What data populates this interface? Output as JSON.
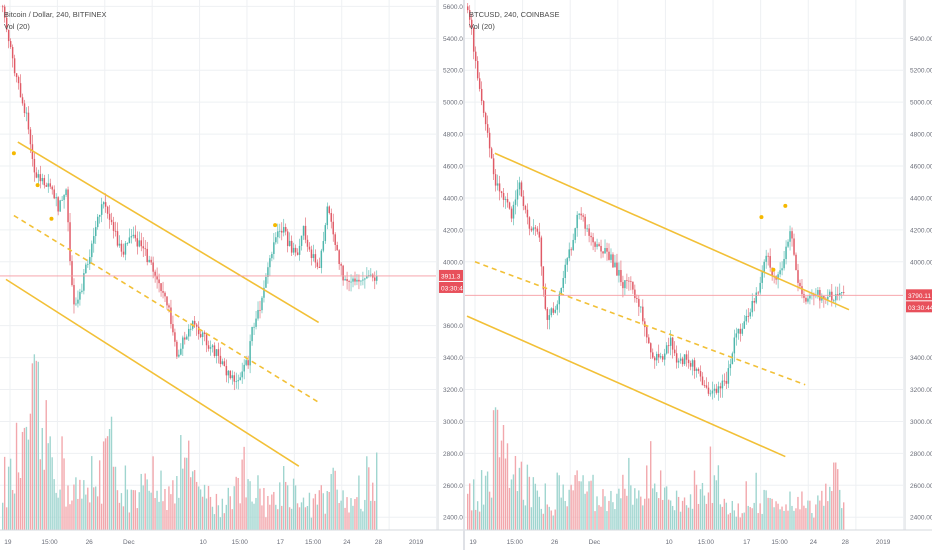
{
  "chart_data": [
    {
      "type": "candlestick",
      "title": "Bitcoin / Dollar, 240, BITFINEX",
      "subtitle": "Vol (20)",
      "price_ticks": [
        "5600.0",
        "5400.0",
        "5200.0",
        "5000.0",
        "4800.0",
        "4600.0",
        "4400.0",
        "4200.0",
        "4000.0",
        "3600.0",
        "3400.0",
        "3200.0",
        "3000.0",
        "2800.0",
        "2600.0",
        "2400.0"
      ],
      "time_ticks": [
        "19",
        "15:00",
        "26",
        "Dec",
        "10",
        "15:00",
        "17",
        "15:00",
        "24",
        "28",
        "2019"
      ],
      "y_range": [
        2320,
        5640
      ],
      "x_count": 190,
      "last_price": "3911.3",
      "countdown": "03:30:44",
      "close_path": [
        [
          0,
          5600
        ],
        [
          6,
          5200
        ],
        [
          12,
          4900
        ],
        [
          16,
          4550
        ],
        [
          20,
          4500
        ],
        [
          24,
          4500
        ],
        [
          28,
          4350
        ],
        [
          32,
          4450
        ],
        [
          34,
          3980
        ],
        [
          36,
          3700
        ],
        [
          40,
          3850
        ],
        [
          44,
          4050
        ],
        [
          48,
          4300
        ],
        [
          52,
          4360
        ],
        [
          56,
          4200
        ],
        [
          60,
          4050
        ],
        [
          66,
          4160
        ],
        [
          72,
          4050
        ],
        [
          78,
          3900
        ],
        [
          84,
          3680
        ],
        [
          88,
          3400
        ],
        [
          92,
          3530
        ],
        [
          96,
          3640
        ],
        [
          100,
          3550
        ],
        [
          104,
          3480
        ],
        [
          108,
          3430
        ],
        [
          112,
          3330
        ],
        [
          116,
          3260
        ],
        [
          120,
          3300
        ],
        [
          124,
          3370
        ],
        [
          126,
          3600
        ],
        [
          130,
          3700
        ],
        [
          134,
          3960
        ],
        [
          138,
          4180
        ],
        [
          142,
          4230
        ],
        [
          144,
          4120
        ],
        [
          148,
          4030
        ],
        [
          152,
          4200
        ],
        [
          156,
          4050
        ],
        [
          160,
          3950
        ],
        [
          164,
          4350
        ],
        [
          168,
          4100
        ],
        [
          172,
          3900
        ],
        [
          176,
          3880
        ],
        [
          180,
          3900
        ]
      ],
      "volume_pattern": [
        0.35,
        0.5,
        0.82,
        0.6,
        0.45,
        0.3,
        0.25,
        0.4,
        0.55,
        0.35,
        0.2,
        0.28,
        0.38,
        0.25,
        0.48,
        0.3,
        0.22,
        0.18,
        0.3,
        0.42,
        0.26,
        0.2,
        0.33,
        0.28,
        0.18,
        0.22,
        0.3,
        0.2,
        0.26,
        0.36
      ],
      "channel_upper": [
        [
          8,
          4750
        ],
        [
          160,
          3620
        ]
      ],
      "channel_mid": [
        [
          6,
          4290
        ],
        [
          160,
          3120
        ]
      ],
      "channel_lower": [
        [
          2,
          3890
        ],
        [
          150,
          2720
        ]
      ],
      "marker_points": [
        [
          6,
          4680
        ],
        [
          18,
          4480
        ],
        [
          25,
          4270
        ],
        [
          138,
          4230
        ]
      ],
      "colors": {
        "up": "#4db6ac",
        "down": "#e05a66",
        "vol_up": "#9fd5cf",
        "vol_down": "#f2a7ac",
        "channel": "#f2c037",
        "last_price": "#e8505b",
        "hline": "#f59aa1",
        "grid": "#eef0f3",
        "axis_text": "#6a6d78"
      }
    },
    {
      "type": "candlestick",
      "title": "BTCUSD, 240, COINBASE",
      "subtitle": "Vol (20)",
      "price_ticks": [
        "5400.00",
        "5200.00",
        "5000.00",
        "4800.00",
        "4600.00",
        "4400.00",
        "4200.00",
        "4000.00",
        "3400.00",
        "3200.00",
        "3000.00",
        "2800.00",
        "2600.00",
        "2400.00"
      ],
      "time_ticks": [
        "19",
        "15:00",
        "26",
        "Dec",
        "10",
        "15:00",
        "17",
        "15:00",
        "24",
        "28",
        "2019"
      ],
      "y_range": [
        2320,
        5640
      ],
      "x_count": 190,
      "last_price": "3790.11",
      "countdown": "03:30:44",
      "close_path": [
        [
          0,
          5600
        ],
        [
          6,
          5100
        ],
        [
          10,
          4800
        ],
        [
          14,
          4500
        ],
        [
          18,
          4380
        ],
        [
          22,
          4300
        ],
        [
          26,
          4500
        ],
        [
          28,
          4350
        ],
        [
          32,
          4200
        ],
        [
          36,
          4150
        ],
        [
          38,
          3800
        ],
        [
          40,
          3650
        ],
        [
          44,
          3700
        ],
        [
          48,
          3900
        ],
        [
          52,
          4100
        ],
        [
          56,
          4330
        ],
        [
          58,
          4250
        ],
        [
          62,
          4130
        ],
        [
          66,
          4080
        ],
        [
          70,
          4050
        ],
        [
          74,
          3980
        ],
        [
          78,
          3850
        ],
        [
          82,
          3860
        ],
        [
          86,
          3740
        ],
        [
          90,
          3550
        ],
        [
          94,
          3380
        ],
        [
          98,
          3420
        ],
        [
          102,
          3500
        ],
        [
          106,
          3360
        ],
        [
          110,
          3400
        ],
        [
          114,
          3340
        ],
        [
          118,
          3230
        ],
        [
          122,
          3150
        ],
        [
          126,
          3190
        ],
        [
          130,
          3260
        ],
        [
          134,
          3500
        ],
        [
          138,
          3600
        ],
        [
          142,
          3700
        ],
        [
          146,
          3830
        ],
        [
          150,
          4050
        ],
        [
          154,
          3880
        ],
        [
          158,
          3950
        ],
        [
          160,
          4070
        ],
        [
          162,
          4200
        ],
        [
          166,
          3870
        ],
        [
          170,
          3750
        ],
        [
          174,
          3790
        ],
        [
          178,
          3790
        ]
      ],
      "volume_pattern": [
        0.25,
        0.4,
        0.78,
        0.5,
        0.35,
        0.28,
        0.22,
        0.3,
        0.48,
        0.3,
        0.2,
        0.26,
        0.35,
        0.22,
        0.44,
        0.28,
        0.2,
        0.17,
        0.28,
        0.4,
        0.24,
        0.18,
        0.3,
        0.25,
        0.17,
        0.2,
        0.28,
        0.18,
        0.24,
        0.32
      ],
      "channel_upper": [
        [
          14,
          4680
        ],
        [
          192,
          3700
        ]
      ],
      "channel_mid": [
        [
          4,
          4000
        ],
        [
          170,
          3230
        ]
      ],
      "channel_lower": [
        [
          0,
          3660
        ],
        [
          160,
          2780
        ]
      ],
      "marker_points": [
        [
          148,
          4280
        ],
        [
          154,
          3950
        ],
        [
          160,
          4350
        ]
      ],
      "colors": {
        "up": "#4db6ac",
        "down": "#e05a66",
        "vol_up": "#9fd5cf",
        "vol_down": "#f2a7ac",
        "channel": "#f2c037",
        "last_price": "#e8505b",
        "hline": "#f59aa1",
        "grid": "#eef0f3",
        "axis_text": "#6a6d78"
      }
    }
  ]
}
